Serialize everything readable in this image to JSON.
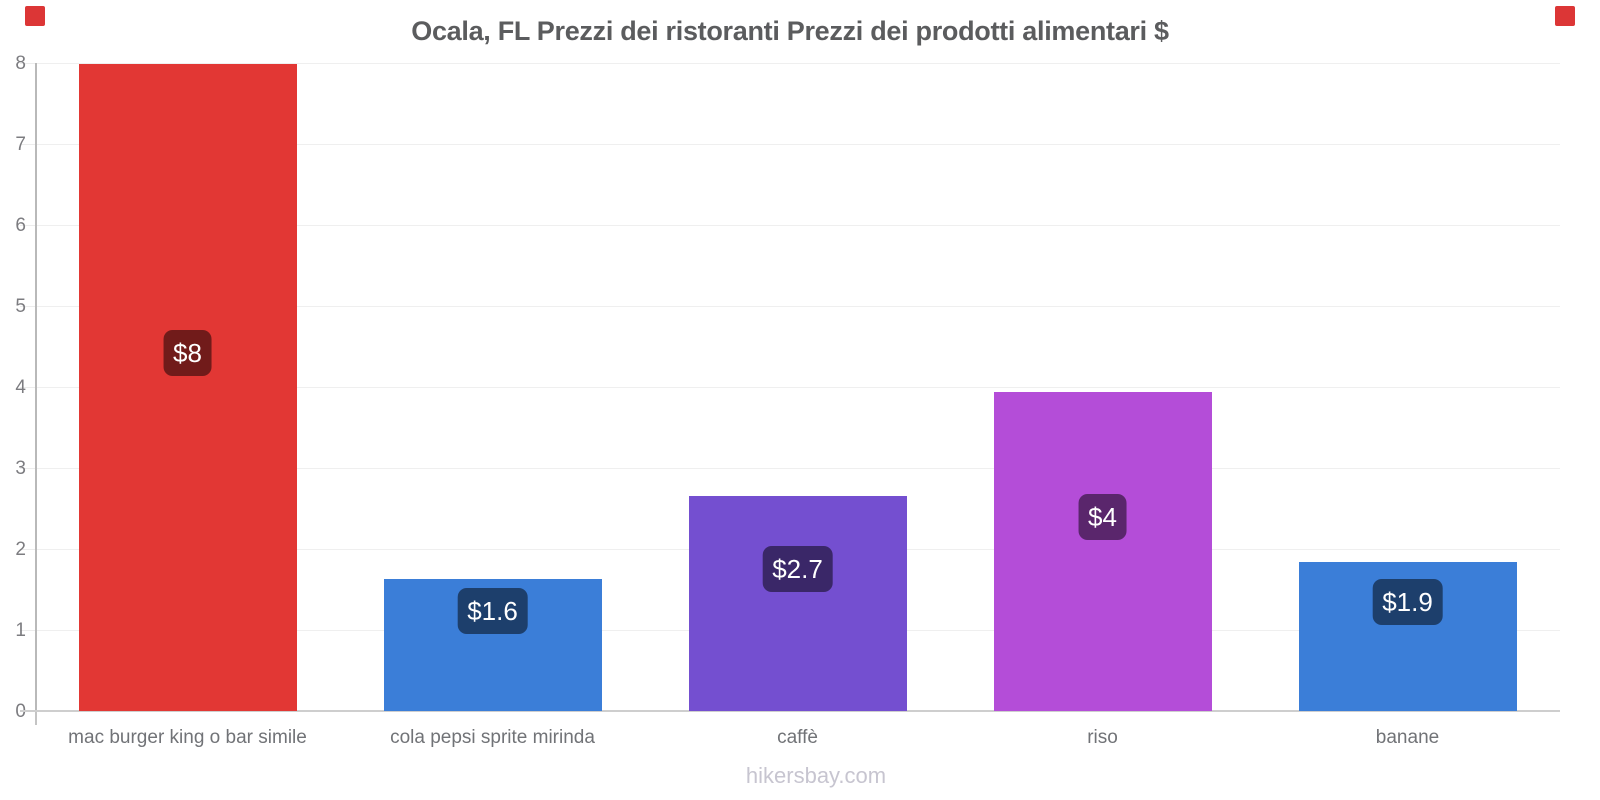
{
  "title": "Ocala, FL Prezzi dei ristoranti Prezzi dei prodotti alimentari $",
  "watermark": "hikersbay.com",
  "y_axis": {
    "tick_labels": [
      "0",
      "1",
      "2",
      "3",
      "4",
      "5",
      "6",
      "7",
      "8"
    ]
  },
  "chart_data": {
    "type": "bar",
    "title": "Ocala, FL Prezzi dei ristoranti Prezzi dei prodotti alimentari $",
    "categories": [
      "mac burger king o bar simile",
      "cola pepsi sprite mirinda",
      "caffè",
      "riso",
      "banane"
    ],
    "values": [
      8,
      1.64,
      2.67,
      3.95,
      1.85
    ],
    "value_labels": [
      "$8",
      "$1.6",
      "$2.7",
      "$4",
      "$1.9"
    ],
    "bar_colors": [
      "#e23734",
      "#3b7ed8",
      "#744fd0",
      "#b44dd8",
      "#3b7ed8"
    ],
    "value_chip_bg": "rgba(0,0,0,0.5)",
    "value_chip_text_color": "#ffffff",
    "xlabel": "",
    "ylabel": "",
    "ylim": [
      0,
      8
    ],
    "ytick_step": 1,
    "grid": true,
    "legend": false,
    "watermark": "hikersbay.com"
  },
  "decorations": {
    "corner_marker_color": "#dc3636"
  }
}
